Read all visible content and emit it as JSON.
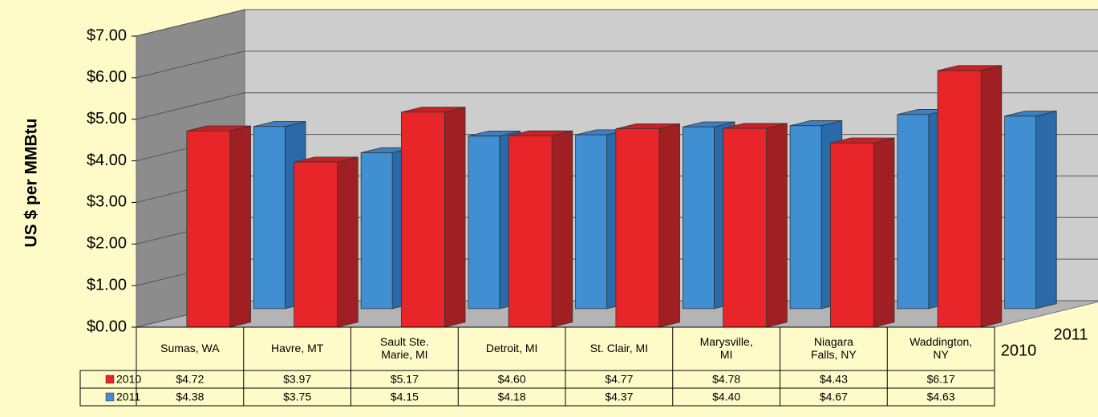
{
  "chart_data": {
    "type": "bar3d",
    "y_label": "US $ per MMBtu",
    "categories": [
      "Sumas, WA",
      "Havre, MT",
      "Sault Ste. Marie, MI",
      "Detroit, MI",
      "St. Clair, MI",
      "Marysville, MI",
      "Niagara Falls, NY",
      "Waddington, NY"
    ],
    "series": [
      {
        "name": "2010",
        "color": "#e8262a",
        "values": [
          4.72,
          3.97,
          5.17,
          4.6,
          4.77,
          4.78,
          4.43,
          6.17
        ],
        "value_labels": [
          "$4.72",
          "$3.97",
          "$5.17",
          "$4.60",
          "$4.77",
          "$4.78",
          "$4.43",
          "$6.17"
        ]
      },
      {
        "name": "2011",
        "color": "#3f8fd2",
        "values": [
          4.38,
          3.75,
          4.15,
          4.18,
          4.37,
          4.4,
          4.67,
          4.63
        ],
        "value_labels": [
          "$4.38",
          "$3.75",
          "$4.15",
          "$4.18",
          "$4.37",
          "$4.40",
          "$4.67",
          "$4.63"
        ]
      }
    ],
    "ylim": [
      0,
      7
    ],
    "yticks": [
      {
        "value": 0,
        "label": "$0.00"
      },
      {
        "value": 1,
        "label": "$1.00"
      },
      {
        "value": 2,
        "label": "$2.00"
      },
      {
        "value": 3,
        "label": "$3.00"
      },
      {
        "value": 4,
        "label": "$4.00"
      },
      {
        "value": 5,
        "label": "$5.00"
      },
      {
        "value": 6,
        "label": "$6.00"
      },
      {
        "value": 7,
        "label": "$7.00"
      }
    ],
    "grid": true,
    "data_table": true
  }
}
